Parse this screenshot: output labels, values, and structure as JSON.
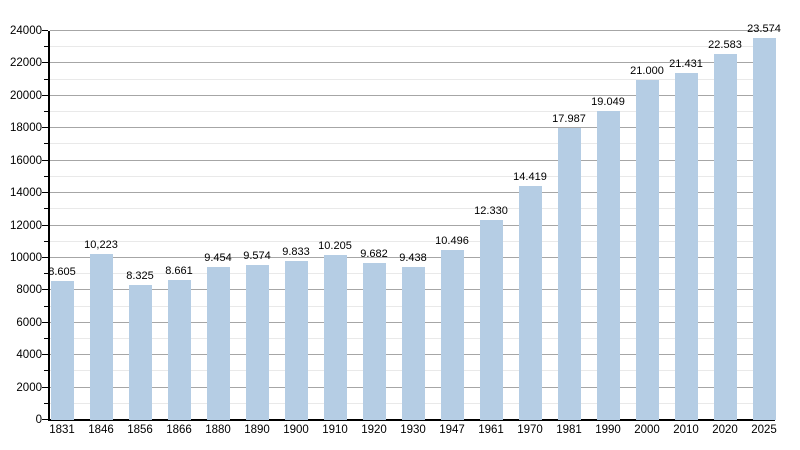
{
  "chart_data": {
    "type": "bar",
    "title": "",
    "xlabel": "",
    "ylabel": "",
    "categories": [
      "1831",
      "1846",
      "1856",
      "1866",
      "1880",
      "1890",
      "1900",
      "1910",
      "1920",
      "1930",
      "1947",
      "1961",
      "1970",
      "1981",
      "1990",
      "2000",
      "2010",
      "2020",
      "2025"
    ],
    "values": [
      8605,
      10223,
      8325,
      8661,
      9454,
      9574,
      9833,
      10205,
      9682,
      9438,
      10496,
      12330,
      14419,
      17987,
      19049,
      21000,
      21431,
      22583,
      23574
    ],
    "value_labels": [
      "8.605",
      "10,223",
      "8.325",
      "8.661",
      "9.454",
      "9.574",
      "9.833",
      "10.205",
      "9.682",
      "9.438",
      "10.496",
      "12.330",
      "14.419",
      "17.987",
      "19.049",
      "21.000",
      "21.431",
      "22.583",
      "23.574"
    ],
    "ylim": [
      0,
      24000
    ],
    "y_major_step": 2000,
    "y_minor_step": 1000,
    "y_tick_labels": [
      "0",
      "2000",
      "4000",
      "6000",
      "8000",
      "10000",
      "12000",
      "14000",
      "16000",
      "18000",
      "20000",
      "22000",
      "24000"
    ],
    "grid": "horizontal, major and minor, behind bars",
    "legend": "none",
    "colors": {
      "bar_fill": "#b5cde4",
      "major_grid": "#a6a6a6",
      "minor_grid": "#e9e9e9",
      "axis": "#000000",
      "text": "#000000",
      "background": "#ffffff"
    }
  }
}
